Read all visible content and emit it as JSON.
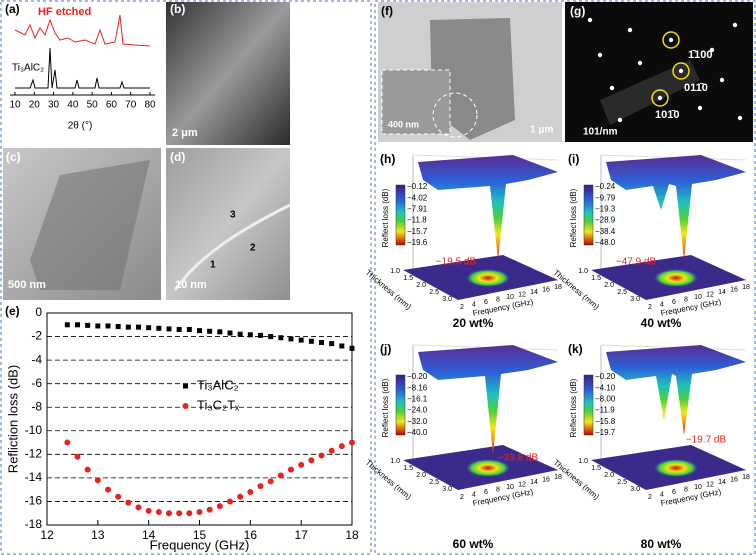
{
  "panels": {
    "a": {
      "label": "(a)",
      "title": "HF etched",
      "sample": "Ti₃AlC₂",
      "x_label": "2θ (°)",
      "xticks": [
        10,
        20,
        30,
        40,
        50,
        60,
        70,
        80
      ]
    },
    "b": {
      "label": "(b)",
      "scale": "2 μm"
    },
    "c": {
      "label": "(c)",
      "scale": "500 nm"
    },
    "d": {
      "label": "(d)",
      "scale": "10 nm",
      "markers": [
        "1",
        "2",
        "3"
      ]
    },
    "e": {
      "label": "(e)"
    },
    "f": {
      "label": "(f)",
      "inset_scale": "400 nm",
      "scale": "1 μm"
    },
    "g": {
      "label": "(g)",
      "scale": "101/nm",
      "spots": [
        "1̄100",
        "011̄0",
        "101̄0"
      ]
    },
    "h": {
      "label": "(h)",
      "colorbar": [
        "−0.12",
        "−4.02",
        "−7.91",
        "−11.8",
        "−15.7",
        "−19.6"
      ],
      "annotation": "−19.5 dB",
      "caption": "20 wt%"
    },
    "i": {
      "label": "(i)",
      "colorbar": [
        "−0.24",
        "−9.79",
        "−19.3",
        "−28.9",
        "−38.4",
        "−48.0"
      ],
      "annotation": "−47.9 dB",
      "caption": "40 wt%"
    },
    "j": {
      "label": "(j)",
      "colorbar": [
        "−0.20",
        "−8.16",
        "−16.1",
        "−24.0",
        "−32.0",
        "−40.0"
      ],
      "annotation": "−39.8 dB",
      "caption": "60 wt%"
    },
    "k": {
      "label": "(k)",
      "colorbar": [
        "−0.20",
        "−4.10",
        "−8.00",
        "−11.9",
        "−15.8",
        "−19.7"
      ],
      "annotation": "−19.7 dB",
      "caption": "80 wt%"
    }
  },
  "surface_axes": {
    "z_label": "Reflect loss (dB)",
    "y_label": "Thickness (mm)",
    "x_label": "Frequency (GHz)",
    "frequency_ticks": [
      2,
      4,
      6,
      8,
      10,
      12,
      14,
      16,
      18
    ],
    "thickness_ticks": [
      "1.0",
      "1.5",
      "2.0",
      "2.5",
      "3.0"
    ]
  },
  "chart_data": {
    "type": "scatter",
    "x_label": "Frequency (GHz)",
    "y_label": "Refliction loss (dB)",
    "x": [
      12.4,
      12.6,
      12.8,
      13.0,
      13.2,
      13.4,
      13.6,
      13.8,
      14.0,
      14.2,
      14.4,
      14.6,
      14.8,
      15.0,
      15.2,
      15.4,
      15.6,
      15.8,
      16.0,
      16.2,
      16.4,
      16.6,
      16.8,
      17.0,
      17.2,
      17.4,
      17.6,
      17.8,
      18.0
    ],
    "series": [
      {
        "name": "Ti₃AlC₂",
        "color": "#000000",
        "marker": "square",
        "values": [
          -1.0,
          -1.0,
          -1.05,
          -1.1,
          -1.1,
          -1.15,
          -1.2,
          -1.2,
          -1.25,
          -1.3,
          -1.35,
          -1.4,
          -1.4,
          -1.5,
          -1.55,
          -1.6,
          -1.7,
          -1.8,
          -1.85,
          -1.9,
          -2.0,
          -2.1,
          -2.2,
          -2.3,
          -2.4,
          -2.5,
          -2.6,
          -2.8,
          -3.0
        ]
      },
      {
        "name": "Ti₃C₂Tₓ",
        "color": "#e8231f",
        "marker": "circle",
        "values": [
          -11.0,
          -12.2,
          -13.3,
          -14.2,
          -15.0,
          -15.6,
          -16.1,
          -16.5,
          -16.8,
          -16.9,
          -17.0,
          -17.0,
          -17.0,
          -16.9,
          -16.7,
          -16.4,
          -16.0,
          -15.6,
          -15.2,
          -14.7,
          -14.3,
          -13.8,
          -13.3,
          -12.9,
          -12.5,
          -12.1,
          -11.7,
          -11.3,
          -11.0
        ]
      }
    ],
    "xlim": [
      12,
      18
    ],
    "ylim": [
      -18,
      0
    ],
    "xticks": [
      12,
      13,
      14,
      15,
      16,
      17,
      18
    ],
    "yticks": [
      0,
      -2,
      -4,
      -6,
      -8,
      -10,
      -12,
      -14,
      -16,
      -18
    ],
    "grid": true
  }
}
